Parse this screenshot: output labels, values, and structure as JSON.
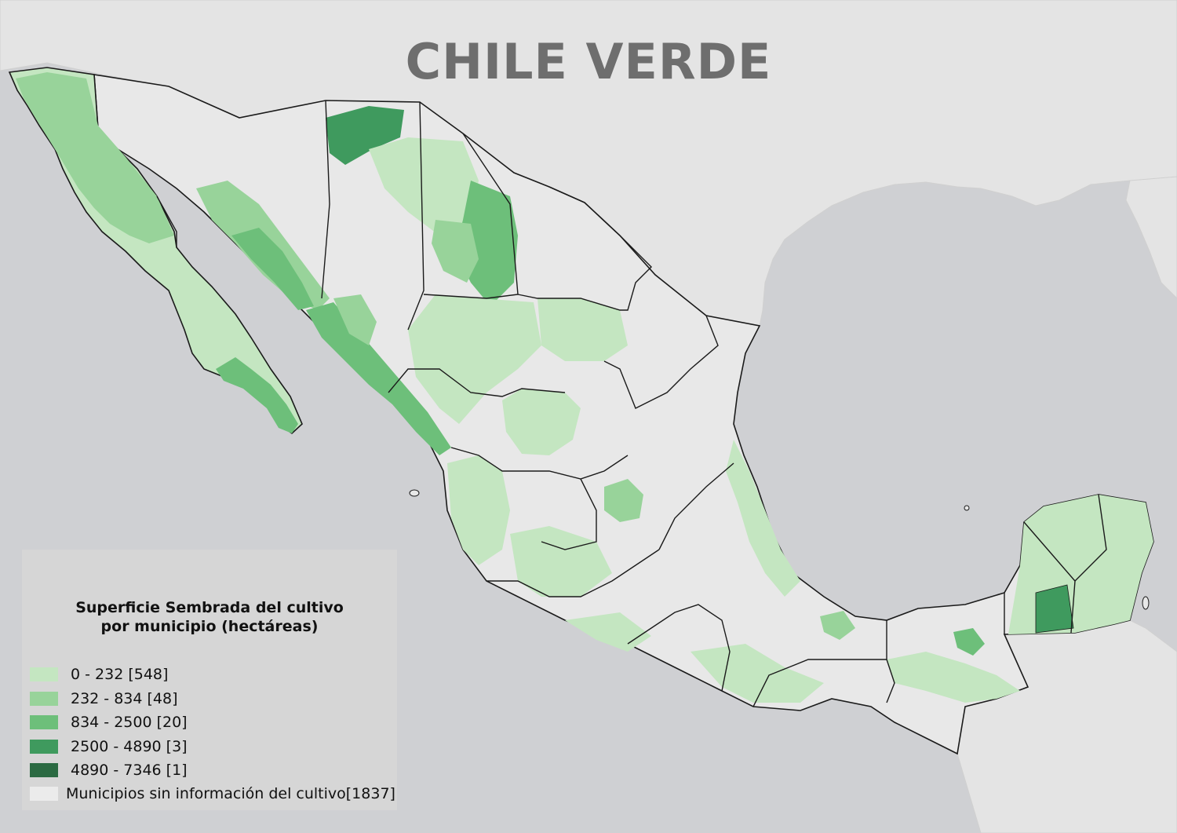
{
  "title": "CHILE VERDE",
  "colors": {
    "ocean": "#cfd0d3",
    "land_foreign": "#e4e4e4",
    "no_data": "#e8e8e8",
    "border": "#1a1a1a",
    "title_text": "#6e6e6e",
    "legend_bg": "#d6d6d6"
  },
  "legend": {
    "title_lines": [
      "Superficie Sembrada del cultivo",
      "por municipio (hectáreas)"
    ],
    "classes": [
      {
        "label": "0 - 232  [548]",
        "color": "#c4e6c1"
      },
      {
        "label": "232 - 834  [48]",
        "color": "#98d39a"
      },
      {
        "label": "834 - 2500  [20]",
        "color": "#6dbf7a"
      },
      {
        "label": "2500 - 4890  [3]",
        "color": "#3f9a5e"
      },
      {
        "label": "4890 - 7346  [1]",
        "color": "#2b6a42"
      },
      {
        "label": "Municipios sin información del cultivo[1837]",
        "color": "#ebebeb"
      }
    ]
  }
}
